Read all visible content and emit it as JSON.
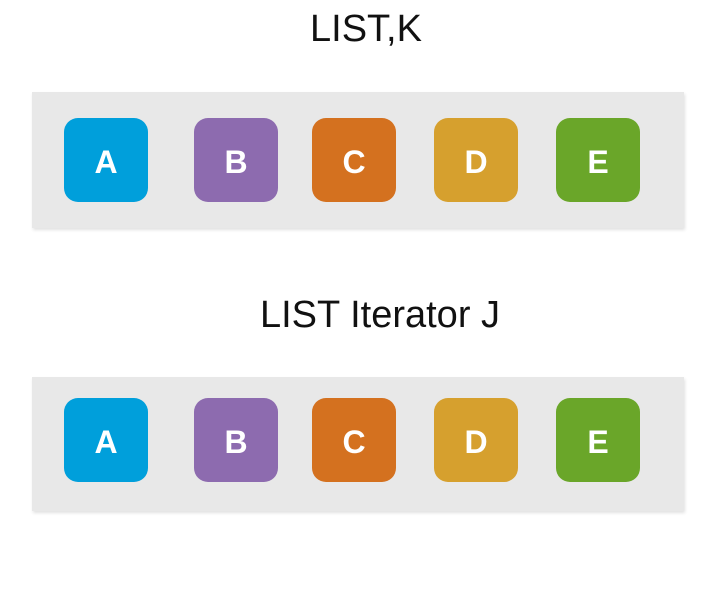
{
  "diagram": {
    "rows": [
      {
        "title": "LIST,K",
        "items": [
          {
            "label": "A",
            "color": "#009fdb"
          },
          {
            "label": "B",
            "color": "#8d6baf"
          },
          {
            "label": "C",
            "color": "#d4711f"
          },
          {
            "label": "D",
            "color": "#d6a02e"
          },
          {
            "label": "E",
            "color": "#6aa629"
          }
        ]
      },
      {
        "title": "LIST Iterator J",
        "items": [
          {
            "label": "A",
            "color": "#009fdb"
          },
          {
            "label": "B",
            "color": "#8d6baf"
          },
          {
            "label": "C",
            "color": "#d4711f"
          },
          {
            "label": "D",
            "color": "#d6a02e"
          },
          {
            "label": "E",
            "color": "#6aa629"
          }
        ]
      }
    ]
  }
}
